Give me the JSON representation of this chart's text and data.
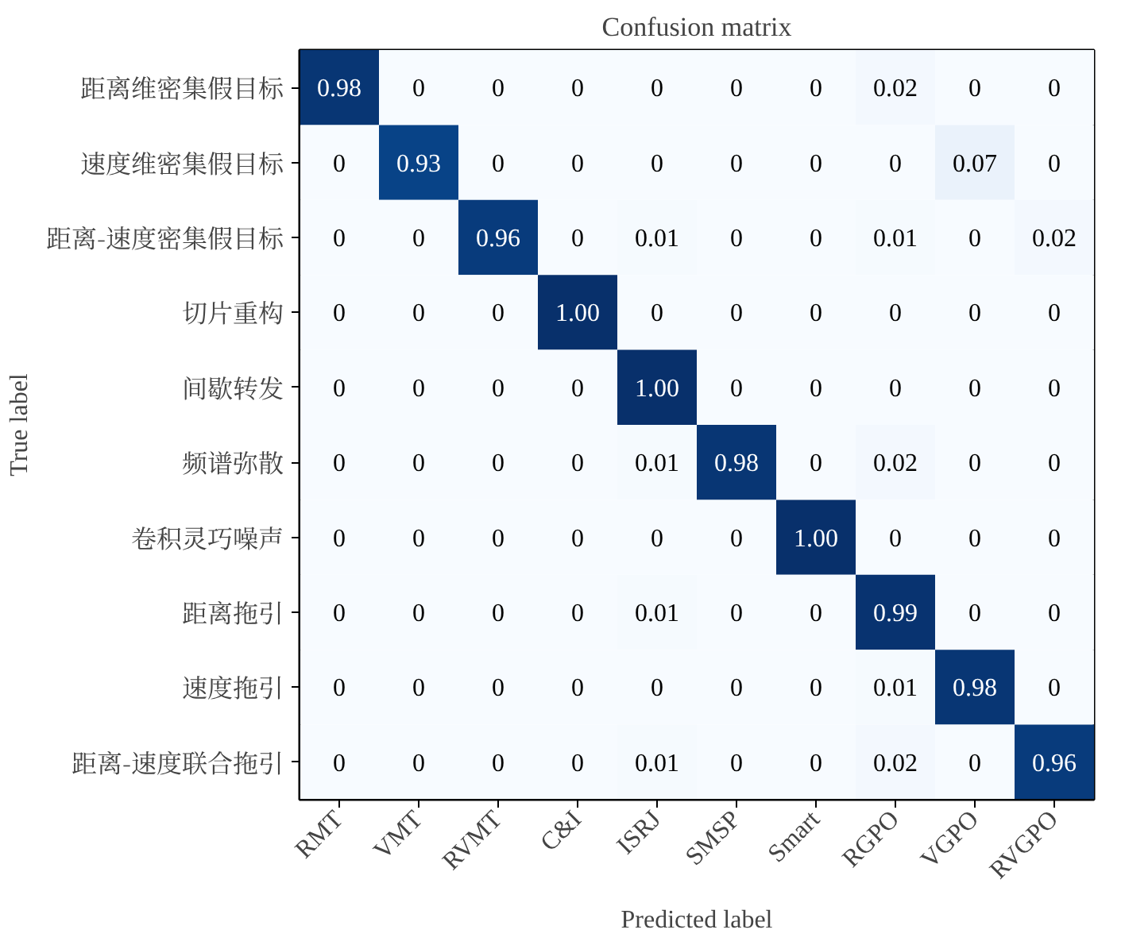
{
  "chart_data": {
    "type": "heatmap",
    "title": "Confusion matrix",
    "xlabel": "Predicted label",
    "ylabel": "True label",
    "categories": [
      "RMT",
      "VMT",
      "RVMT",
      "C&I",
      "ISRJ",
      "SMSP",
      "Smart",
      "RGPO",
      "VGPO",
      "RVGPO"
    ],
    "y_categories": [
      "距离维密集假目标",
      "速度维密集假目标",
      "距离-速度密集假目标",
      "切片重构",
      "间歇转发",
      "频谱弥散",
      "卷积灵巧噪声",
      "距离拖引",
      "速度拖引",
      "距离-速度联合拖引"
    ],
    "cells": [
      [
        0.98,
        0,
        0,
        0,
        0,
        0,
        0,
        0.02,
        0,
        0
      ],
      [
        0,
        0.93,
        0,
        0,
        0,
        0,
        0,
        0,
        0.07,
        0
      ],
      [
        0,
        0,
        0.96,
        0,
        0.01,
        0,
        0,
        0.01,
        0,
        0.02
      ],
      [
        0,
        0,
        0,
        1.0,
        0,
        0,
        0,
        0,
        0,
        0
      ],
      [
        0,
        0,
        0,
        0,
        1.0,
        0,
        0,
        0,
        0,
        0
      ],
      [
        0,
        0,
        0,
        0,
        0.01,
        0.98,
        0,
        0.02,
        0,
        0
      ],
      [
        0,
        0,
        0,
        0,
        0,
        0,
        1.0,
        0,
        0,
        0
      ],
      [
        0,
        0,
        0,
        0,
        0.01,
        0,
        0,
        0.99,
        0,
        0
      ],
      [
        0,
        0,
        0,
        0,
        0,
        0,
        0,
        0.01,
        0.98,
        0
      ],
      [
        0,
        0,
        0,
        0,
        0.01,
        0,
        0,
        0.02,
        0,
        0.96
      ]
    ],
    "cell_labels": [
      [
        "0.98",
        "0",
        "0",
        "0",
        "0",
        "0",
        "0",
        "0.02",
        "0",
        "0"
      ],
      [
        "0",
        "0.93",
        "0",
        "0",
        "0",
        "0",
        "0",
        "0",
        "0.07",
        "0"
      ],
      [
        "0",
        "0",
        "0.96",
        "0",
        "0.01",
        "0",
        "0",
        "0.01",
        "0",
        "0.02"
      ],
      [
        "0",
        "0",
        "0",
        "1.00",
        "0",
        "0",
        "0",
        "0",
        "0",
        "0"
      ],
      [
        "0",
        "0",
        "0",
        "0",
        "1.00",
        "0",
        "0",
        "0",
        "0",
        "0"
      ],
      [
        "0",
        "0",
        "0",
        "0",
        "0.01",
        "0.98",
        "0",
        "0.02",
        "0",
        "0"
      ],
      [
        "0",
        "0",
        "0",
        "0",
        "0",
        "0",
        "1.00",
        "0",
        "0",
        "0"
      ],
      [
        "0",
        "0",
        "0",
        "0",
        "0.01",
        "0",
        "0",
        "0.99",
        "0",
        "0"
      ],
      [
        "0",
        "0",
        "0",
        "0",
        "0",
        "0",
        "0",
        "0.01",
        "0.98",
        "0"
      ],
      [
        "0",
        "0",
        "0",
        "0",
        "0.01",
        "0",
        "0",
        "0.02",
        "0",
        "0.96"
      ]
    ]
  }
}
